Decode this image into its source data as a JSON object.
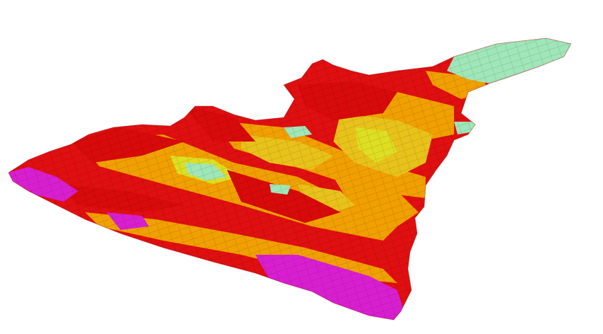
{
  "scene": {
    "subject": "3d-voxel-block-model",
    "colors": {
      "magenta": "#d81fd0",
      "red": "#e00f10",
      "orange": "#f0a000",
      "gold": "#e8c21a",
      "yellow": "#dede22",
      "mint": "#9fe6b8"
    }
  }
}
